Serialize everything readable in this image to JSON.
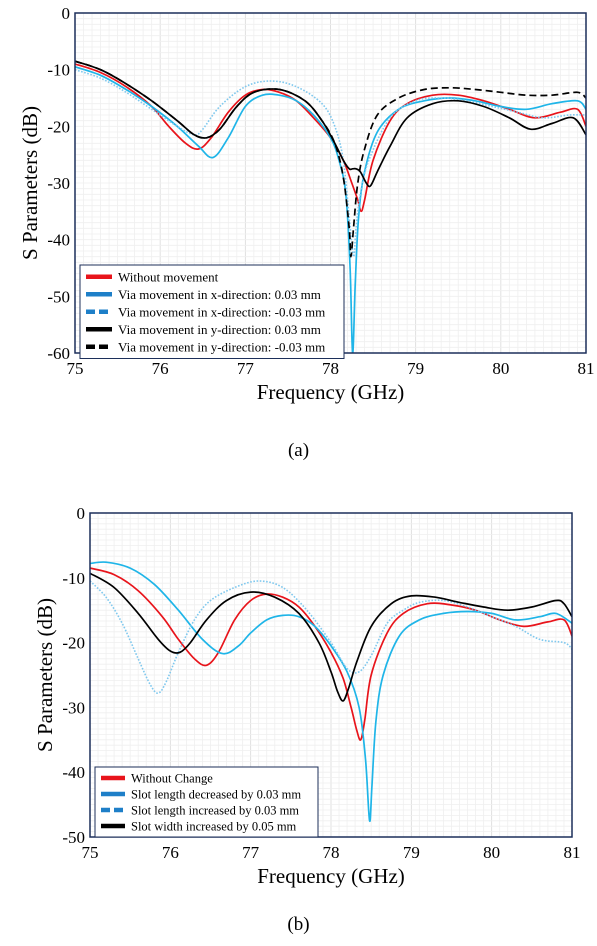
{
  "captions": [
    "(a)",
    "(b)"
  ],
  "chart_data": [
    {
      "type": "line",
      "xlabel": "Frequency (GHz)",
      "ylabel": "S Parameters (dB)",
      "xlim": [
        75,
        81
      ],
      "ylim": [
        -60,
        0
      ],
      "xticks": [
        75,
        76,
        77,
        78,
        79,
        80,
        81
      ],
      "yticks": [
        0,
        -10,
        -20,
        -30,
        -40,
        -50,
        -60
      ],
      "grid": true,
      "legend_position": "bottom-left",
      "series": [
        {
          "name": "Without movement",
          "color": "#e8141b",
          "dash": "solid",
          "x": [
            75,
            75.3,
            75.6,
            75.9,
            76.1,
            76.3,
            76.45,
            76.6,
            76.8,
            77.0,
            77.2,
            77.4,
            77.6,
            77.8,
            78.0,
            78.15,
            78.25,
            78.32,
            78.36,
            78.4,
            78.5,
            78.7,
            78.9,
            79.2,
            79.5,
            79.8,
            80.1,
            80.4,
            80.7,
            80.9,
            81
          ],
          "y": [
            -9,
            -10.5,
            -13,
            -16.5,
            -20,
            -23,
            -24,
            -22,
            -17.5,
            -14.5,
            -13.5,
            -14,
            -15.5,
            -18.5,
            -22,
            -26,
            -30,
            -33,
            -35,
            -33,
            -26,
            -19,
            -16,
            -14.5,
            -14.5,
            -15.5,
            -17,
            -18.5,
            -17.5,
            -17,
            -20
          ]
        },
        {
          "name": "Via movement in x-direction: 0.03 mm",
          "color": "#1fb5e8",
          "dash": "solid",
          "x": [
            75,
            75.3,
            75.6,
            75.9,
            76.2,
            76.45,
            76.62,
            76.8,
            77.0,
            77.2,
            77.4,
            77.6,
            77.8,
            78.0,
            78.1,
            78.18,
            78.23,
            78.26,
            78.29,
            78.33,
            78.4,
            78.55,
            78.8,
            79.1,
            79.4,
            79.7,
            80.0,
            80.3,
            80.6,
            80.9,
            81
          ],
          "y": [
            -9.5,
            -11,
            -13.5,
            -16.5,
            -20,
            -23.5,
            -25.5,
            -22,
            -16.5,
            -14.5,
            -14.5,
            -15.5,
            -18,
            -22,
            -26,
            -32,
            -45,
            -60,
            -48,
            -36,
            -28,
            -21,
            -17,
            -15.5,
            -15,
            -15.5,
            -16.5,
            -17,
            -16,
            -15.5,
            -17
          ]
        },
        {
          "name": "Via movement in x-direction: -0.03 mm",
          "color": "#7fc8ee",
          "dash": "dotted",
          "x": [
            75,
            75.3,
            75.6,
            75.9,
            76.2,
            76.4,
            76.5,
            76.7,
            77.0,
            77.3,
            77.6,
            77.9,
            78.05,
            78.15,
            78.22,
            78.27,
            78.3,
            78.35,
            78.45,
            78.7,
            79.0,
            79.3,
            79.6,
            79.9,
            80.2,
            80.5,
            80.8,
            81
          ],
          "y": [
            -10,
            -11.5,
            -14,
            -17,
            -20,
            -21.5,
            -20.5,
            -16.5,
            -13,
            -12,
            -13,
            -16,
            -20,
            -26,
            -36,
            -43,
            -38,
            -32,
            -26,
            -18.5,
            -15.5,
            -15,
            -15.5,
            -16.5,
            -17.5,
            -18.5,
            -18,
            -18
          ]
        },
        {
          "name": "Via movement in y-direction: 0.03 mm",
          "color": "#000000",
          "dash": "solid",
          "x": [
            75,
            75.3,
            75.6,
            75.9,
            76.2,
            76.4,
            76.55,
            76.7,
            76.9,
            77.1,
            77.4,
            77.7,
            77.9,
            78.05,
            78.15,
            78.22,
            78.26,
            78.3,
            78.35,
            78.42,
            78.47,
            78.55,
            78.7,
            78.9,
            79.2,
            79.5,
            79.8,
            80.1,
            80.35,
            80.6,
            80.85,
            81
          ],
          "y": [
            -8.5,
            -10,
            -12.5,
            -15.5,
            -19,
            -21.5,
            -22,
            -20.5,
            -16.5,
            -14,
            -13.5,
            -15.5,
            -19,
            -23,
            -26,
            -27.5,
            -27.5,
            -27.5,
            -28,
            -30,
            -30.5,
            -28,
            -23.5,
            -18.5,
            -16,
            -15.5,
            -16.5,
            -18.5,
            -20.5,
            -19.5,
            -18.5,
            -21.5
          ]
        },
        {
          "name": "Via movement in y-direction: -0.03 mm",
          "color": "#000000",
          "dash": "dashed",
          "x": [
            75,
            75.3,
            75.6,
            75.9,
            76.2,
            76.4,
            76.55,
            76.7,
            76.9,
            77.1,
            77.4,
            77.7,
            77.9,
            78.05,
            78.15,
            78.22,
            78.24,
            78.27,
            78.32,
            78.4,
            78.55,
            78.8,
            79.1,
            79.4,
            79.7,
            80.0,
            80.3,
            80.6,
            80.9,
            81
          ],
          "y": [
            -8.5,
            -10,
            -12.5,
            -15.5,
            -19,
            -21.5,
            -22,
            -20.5,
            -16.5,
            -14,
            -13.5,
            -15.5,
            -19,
            -23,
            -29,
            -38,
            -43,
            -38,
            -30,
            -24,
            -18,
            -15,
            -13.5,
            -13.2,
            -13.5,
            -14,
            -14.5,
            -14.5,
            -14,
            -15
          ]
        }
      ]
    },
    {
      "type": "line",
      "xlabel": "Frequency (GHz)",
      "ylabel": "S Parameters (dB)",
      "xlim": [
        75,
        81
      ],
      "ylim": [
        -50,
        0
      ],
      "xticks": [
        75,
        76,
        77,
        78,
        79,
        80,
        81
      ],
      "yticks": [
        0,
        -10,
        -20,
        -30,
        -40,
        -50
      ],
      "grid": true,
      "legend_position": "bottom-left",
      "series": [
        {
          "name": "Without Change",
          "color": "#e8141b",
          "dash": "solid",
          "x": [
            75,
            75.3,
            75.6,
            75.9,
            76.1,
            76.3,
            76.45,
            76.6,
            76.8,
            77.0,
            77.2,
            77.4,
            77.6,
            77.8,
            78.0,
            78.15,
            78.25,
            78.32,
            78.37,
            78.42,
            78.5,
            78.7,
            78.9,
            79.2,
            79.5,
            79.8,
            80.1,
            80.4,
            80.7,
            80.9,
            81
          ],
          "y": [
            -8.5,
            -9.5,
            -12,
            -16,
            -19.5,
            -22.5,
            -23.5,
            -21.5,
            -16.5,
            -13.5,
            -12.5,
            -13,
            -14.5,
            -17.5,
            -21.5,
            -25.5,
            -30,
            -33.5,
            -35,
            -32,
            -25,
            -18.5,
            -15.5,
            -14,
            -14.2,
            -15,
            -16.5,
            -17.5,
            -16.8,
            -16.5,
            -19
          ]
        },
        {
          "name": "Slot length decreased by 0.03 mm",
          "color": "#1fb5e8",
          "dash": "solid",
          "x": [
            75,
            75.2,
            75.5,
            75.8,
            76.1,
            76.4,
            76.65,
            76.85,
            77.0,
            77.2,
            77.4,
            77.6,
            77.8,
            78.0,
            78.2,
            78.35,
            78.43,
            78.48,
            78.51,
            78.56,
            78.65,
            78.85,
            79.1,
            79.4,
            79.7,
            80.0,
            80.3,
            80.6,
            80.8,
            81
          ],
          "y": [
            -7.8,
            -7.6,
            -8.5,
            -11,
            -15,
            -19.5,
            -21.7,
            -20.5,
            -18.5,
            -16.5,
            -15.8,
            -16,
            -17.5,
            -20.5,
            -24.5,
            -30,
            -38,
            -47.5,
            -42,
            -32,
            -25,
            -19,
            -16.5,
            -15.5,
            -15.2,
            -15.5,
            -16.5,
            -16,
            -15.5,
            -17
          ]
        },
        {
          "name": "Slot length increased by 0.03 mm",
          "color": "#7fc8ee",
          "dash": "dotted",
          "x": [
            75,
            75.2,
            75.4,
            75.6,
            75.75,
            75.85,
            75.95,
            76.1,
            76.3,
            76.5,
            76.8,
            77.1,
            77.4,
            77.7,
            78.0,
            78.2,
            78.35,
            78.5,
            78.7,
            78.9,
            79.1,
            79.4,
            79.7,
            80.0,
            80.3,
            80.6,
            80.9,
            81
          ],
          "y": [
            -10.5,
            -13,
            -17,
            -22.5,
            -26.5,
            -27.8,
            -26,
            -21.5,
            -16.5,
            -13.5,
            -11.5,
            -10.5,
            -11.5,
            -15,
            -20,
            -24,
            -24.5,
            -22,
            -17,
            -15,
            -13.8,
            -13.5,
            -14.5,
            -16,
            -17.5,
            -19.5,
            -20,
            -21
          ]
        },
        {
          "name": "Slot width increased by 0.05 mm",
          "color": "#000000",
          "dash": "solid",
          "x": [
            75,
            75.3,
            75.6,
            75.85,
            76.0,
            76.12,
            76.25,
            76.45,
            76.7,
            77.0,
            77.3,
            77.6,
            77.85,
            78.0,
            78.08,
            78.15,
            78.22,
            78.32,
            78.5,
            78.75,
            79.0,
            79.3,
            79.6,
            79.9,
            80.2,
            80.5,
            80.8,
            80.9,
            81
          ],
          "y": [
            -9.3,
            -11.5,
            -15.5,
            -19.5,
            -21.3,
            -21.5,
            -20,
            -16.5,
            -13.5,
            -12.2,
            -13,
            -15.5,
            -20,
            -24.5,
            -27.5,
            -29,
            -27,
            -23,
            -17.5,
            -14,
            -12.8,
            -13,
            -13.8,
            -14.5,
            -15,
            -14.5,
            -13.5,
            -14,
            -16
          ]
        }
      ]
    }
  ]
}
